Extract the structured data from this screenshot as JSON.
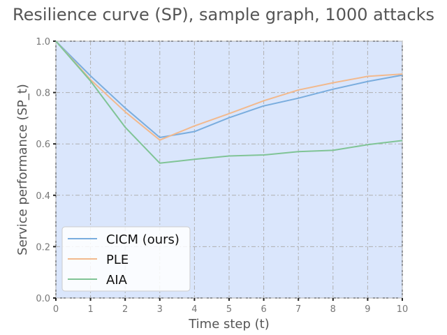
{
  "chart_data": {
    "type": "line",
    "title": "Resilience curve (SP), sample graph, 1000 attacks",
    "xlabel": "Time step (t)",
    "ylabel": "Service performance (SP_t)",
    "x": [
      0,
      1,
      2,
      3,
      4,
      5,
      6,
      7,
      8,
      9,
      10
    ],
    "xlim": [
      0,
      10
    ],
    "ylim": [
      0.0,
      1.0
    ],
    "xticks": [
      "0",
      "1",
      "2",
      "3",
      "4",
      "5",
      "6",
      "7",
      "8",
      "9",
      "10"
    ],
    "yticks": [
      "0.0",
      "0.2",
      "0.4",
      "0.6",
      "0.8",
      "1.0"
    ],
    "grid": true,
    "legend_position": "lower-left",
    "background_color": "#dae6fc",
    "series": [
      {
        "name": "CICM (ours)",
        "color": "#7aadde",
        "values": [
          1.0,
          0.865,
          0.74,
          0.625,
          0.648,
          0.702,
          0.748,
          0.778,
          0.813,
          0.843,
          0.868
        ]
      },
      {
        "name": "PLE",
        "color": "#f2b98d",
        "values": [
          1.0,
          0.85,
          0.725,
          0.615,
          0.67,
          0.718,
          0.768,
          0.81,
          0.838,
          0.863,
          0.872
        ]
      },
      {
        "name": "AIA",
        "color": "#80c496",
        "values": [
          1.0,
          0.845,
          0.665,
          0.525,
          0.54,
          0.553,
          0.557,
          0.57,
          0.575,
          0.597,
          0.613
        ]
      }
    ]
  }
}
